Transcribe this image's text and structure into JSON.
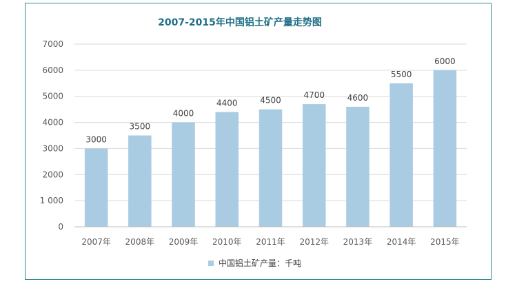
{
  "chart_data": {
    "type": "bar",
    "title": "2007-2015年中国铝土矿产量走势图",
    "categories": [
      "2007年",
      "2008年",
      "2009年",
      "2010年",
      "2011年",
      "2012年",
      "2013年",
      "2014年",
      "2015年"
    ],
    "series": [
      {
        "name": "中国铝土矿产量：千吨",
        "values": [
          3000,
          3500,
          4000,
          4400,
          4500,
          4700,
          4600,
          5500,
          6000
        ]
      }
    ],
    "data_labels": [
      "3000",
      "3500",
      "4000",
      "4400",
      "4500",
      "4700",
      "4600",
      "5500",
      "6000"
    ],
    "ylim": [
      0,
      7000
    ],
    "yticks": [
      "0",
      "1 000",
      "2000",
      "3000",
      "4000",
      "5000",
      "6000",
      "7000"
    ],
    "ytick_values": [
      0,
      1000,
      2000,
      3000,
      4000,
      5000,
      6000,
      7000
    ],
    "grid": true,
    "legend_position": "bottom",
    "colors": {
      "bar": "#a9cce3",
      "frame": "#2e8a8f",
      "title": "#1f6f86"
    }
  }
}
